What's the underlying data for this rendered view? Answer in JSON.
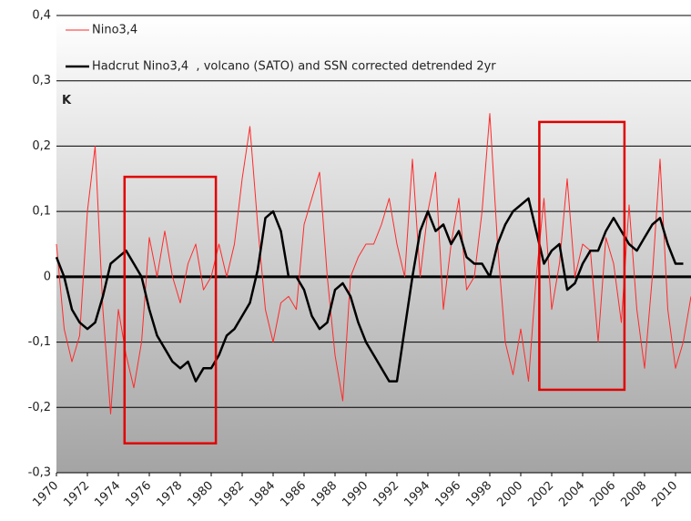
{
  "chart_data": {
    "type": "line",
    "y_label": "K",
    "xlim": [
      1970,
      2011
    ],
    "ylim": [
      -0.3,
      0.4
    ],
    "xticks": [
      1970,
      1972,
      1974,
      1976,
      1978,
      1980,
      1982,
      1984,
      1986,
      1988,
      1990,
      1992,
      1994,
      1996,
      1998,
      2000,
      2002,
      2004,
      2006,
      2008,
      2010
    ],
    "yticks": [
      {
        "value": -0.3,
        "label": "-0,3"
      },
      {
        "value": -0.2,
        "label": "-0,2"
      },
      {
        "value": -0.1,
        "label": "-0,1"
      },
      0,
      {
        "value": 0.1,
        "label": "0,1"
      },
      {
        "value": 0.2,
        "label": "0,2"
      },
      {
        "value": 0.3,
        "label": "0,3"
      },
      {
        "value": 0.4,
        "label": "0,4"
      }
    ],
    "grid": true,
    "legend": "top-left",
    "x": [
      1970,
      1970.5,
      1971,
      1971.5,
      1972,
      1972.5,
      1973,
      1973.5,
      1974,
      1974.5,
      1975,
      1975.5,
      1976,
      1976.5,
      1977,
      1977.5,
      1978,
      1978.5,
      1979,
      1979.5,
      1980,
      1980.5,
      1981,
      1981.5,
      1982,
      1982.5,
      1983,
      1983.5,
      1984,
      1984.5,
      1985,
      1985.5,
      1986,
      1986.5,
      1987,
      1987.5,
      1988,
      1988.5,
      1989,
      1989.5,
      1990,
      1990.5,
      1991,
      1991.5,
      1992,
      1992.5,
      1993,
      1993.5,
      1994,
      1994.5,
      1995,
      1995.5,
      1996,
      1996.5,
      1997,
      1997.5,
      1998,
      1998.5,
      1999,
      1999.5,
      2000,
      2000.5,
      2001,
      2001.5,
      2002,
      2002.5,
      2003,
      2003.5,
      2004,
      2004.5,
      2005,
      2005.5,
      2006,
      2006.5,
      2007,
      2007.5,
      2008,
      2008.5,
      2009,
      2009.5,
      2010,
      2010.5,
      2011
    ],
    "series": [
      {
        "name": "Nino3,4",
        "color": "#ff2a2a",
        "width": 1,
        "values": [
          0.05,
          -0.08,
          -0.13,
          -0.09,
          0.1,
          0.2,
          -0.05,
          -0.21,
          -0.05,
          -0.12,
          -0.17,
          -0.1,
          0.06,
          0.0,
          0.07,
          0.0,
          -0.04,
          0.02,
          0.05,
          -0.02,
          0.0,
          0.05,
          0.0,
          0.05,
          0.15,
          0.23,
          0.08,
          -0.05,
          -0.1,
          -0.04,
          -0.03,
          -0.05,
          0.08,
          0.12,
          0.16,
          0.0,
          -0.12,
          -0.19,
          0.0,
          0.03,
          0.05,
          0.05,
          0.08,
          0.12,
          0.05,
          0.0,
          0.18,
          0.0,
          0.1,
          0.16,
          -0.05,
          0.05,
          0.12,
          -0.02,
          0.0,
          0.1,
          0.25,
          0.05,
          -0.1,
          -0.15,
          -0.08,
          -0.16,
          0.0,
          0.12,
          -0.05,
          0.02,
          0.15,
          0.0,
          0.05,
          0.04,
          -0.1,
          0.06,
          0.02,
          -0.07,
          0.11,
          -0.05,
          -0.14,
          0.0,
          0.18,
          -0.05,
          -0.14,
          -0.1,
          -0.03
        ]
      },
      {
        "name": "Hadcrut Nino3,4  , volcano (SATO) and SSN corrected detrended 2yr",
        "color": "#000000",
        "width": 2.5,
        "values": [
          0.03,
          0.0,
          -0.05,
          -0.07,
          -0.08,
          -0.07,
          -0.03,
          0.02,
          0.03,
          0.04,
          0.02,
          0.0,
          -0.05,
          -0.09,
          -0.11,
          -0.13,
          -0.14,
          -0.13,
          -0.16,
          -0.14,
          -0.14,
          -0.12,
          -0.09,
          -0.08,
          -0.06,
          -0.04,
          0.01,
          0.09,
          0.1,
          0.07,
          0.0,
          0.0,
          -0.02,
          -0.06,
          -0.08,
          -0.07,
          -0.02,
          -0.01,
          -0.03,
          -0.07,
          -0.1,
          -0.12,
          -0.14,
          -0.16,
          -0.16,
          -0.08,
          0.0,
          0.07,
          0.1,
          0.07,
          0.08,
          0.05,
          0.07,
          0.03,
          0.02,
          0.02,
          0.0,
          0.05,
          0.08,
          0.1,
          0.11,
          0.12,
          0.07,
          0.02,
          0.04,
          0.05,
          -0.02,
          -0.01,
          0.02,
          0.04,
          0.04,
          0.07,
          0.09,
          0.07,
          0.05,
          0.04,
          0.06,
          0.08,
          0.09,
          0.05,
          0.02,
          0.02,
          null
        ]
      }
    ],
    "highlight_boxes": [
      {
        "x": [
          1974.4,
          1980.3
        ],
        "y": [
          -0.255,
          0.153
        ],
        "color": "#e00000"
      },
      {
        "x": [
          2001.2,
          2006.7
        ],
        "y": [
          -0.173,
          0.237
        ],
        "color": "#e00000"
      }
    ]
  }
}
